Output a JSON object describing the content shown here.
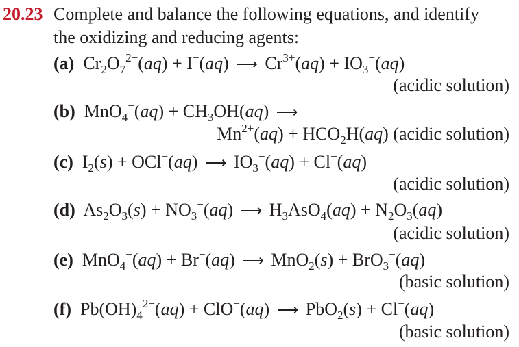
{
  "problem": {
    "number": "20.23",
    "intro_line1": "Complete and balance the following equations, and identify",
    "intro_line2": "the oxidizing and reducing agents:",
    "accent_color": "#c41e2e",
    "parts": [
      {
        "label": "(a)",
        "lines": [
          [
            {
              "t": "Cr"
            },
            {
              "sub": "2"
            },
            {
              "t": "O"
            },
            {
              "sub": "7"
            },
            {
              "sup": "2−"
            },
            {
              "t": "("
            },
            {
              "i": "aq"
            },
            {
              "t": ") + I"
            },
            {
              "sup": "−"
            },
            {
              "t": "("
            },
            {
              "i": "aq"
            },
            {
              "t": ") "
            },
            {
              "arrow": "⟶"
            },
            {
              "t": " Cr"
            },
            {
              "sup": "3+"
            },
            {
              "t": "("
            },
            {
              "i": "aq"
            },
            {
              "t": ") + IO"
            },
            {
              "sub": "3"
            },
            {
              "sup": "−"
            },
            {
              "t": "("
            },
            {
              "i": "aq"
            },
            {
              "t": ")"
            }
          ],
          [
            {
              "t": "(acidic solution)"
            }
          ]
        ]
      },
      {
        "label": "(b)",
        "lines": [
          [
            {
              "t": "MnO"
            },
            {
              "sub": "4"
            },
            {
              "sup": "−"
            },
            {
              "t": "("
            },
            {
              "i": "aq"
            },
            {
              "t": ") + CH"
            },
            {
              "sub": "3"
            },
            {
              "t": "OH("
            },
            {
              "i": "aq"
            },
            {
              "t": ") "
            },
            {
              "arrow": "⟶"
            }
          ],
          [
            {
              "t": "Mn"
            },
            {
              "sup": "2+"
            },
            {
              "t": "("
            },
            {
              "i": "aq"
            },
            {
              "t": ") + HCO"
            },
            {
              "sub": "2"
            },
            {
              "t": "H("
            },
            {
              "i": "aq"
            },
            {
              "t": ") (acidic solution)"
            }
          ]
        ]
      },
      {
        "label": "(c)",
        "lines": [
          [
            {
              "t": "I"
            },
            {
              "sub": "2"
            },
            {
              "t": "("
            },
            {
              "i": "s"
            },
            {
              "t": ") + OCl"
            },
            {
              "sup": "−"
            },
            {
              "t": "("
            },
            {
              "i": "aq"
            },
            {
              "t": ") "
            },
            {
              "arrow": "⟶"
            },
            {
              "t": " IO"
            },
            {
              "sub": "3"
            },
            {
              "sup": "−"
            },
            {
              "t": "("
            },
            {
              "i": "aq"
            },
            {
              "t": ") + Cl"
            },
            {
              "sup": "−"
            },
            {
              "t": "("
            },
            {
              "i": "aq"
            },
            {
              "t": ")"
            }
          ],
          [
            {
              "t": "(acidic solution)"
            }
          ]
        ]
      },
      {
        "label": "(d)",
        "lines": [
          [
            {
              "t": "As"
            },
            {
              "sub": "2"
            },
            {
              "t": "O"
            },
            {
              "sub": "3"
            },
            {
              "t": "("
            },
            {
              "i": "s"
            },
            {
              "t": ") + NO"
            },
            {
              "sub": "3"
            },
            {
              "sup": "−"
            },
            {
              "t": "("
            },
            {
              "i": "aq"
            },
            {
              "t": ") "
            },
            {
              "arrow": "⟶"
            },
            {
              "t": " H"
            },
            {
              "sub": "3"
            },
            {
              "t": "AsO"
            },
            {
              "sub": "4"
            },
            {
              "t": "("
            },
            {
              "i": "aq"
            },
            {
              "t": ") + N"
            },
            {
              "sub": "2"
            },
            {
              "t": "O"
            },
            {
              "sub": "3"
            },
            {
              "t": "("
            },
            {
              "i": "aq"
            },
            {
              "t": ")"
            }
          ],
          [
            {
              "t": "(acidic solution)"
            }
          ]
        ]
      },
      {
        "label": "(e)",
        "lines": [
          [
            {
              "t": "MnO"
            },
            {
              "sub": "4"
            },
            {
              "sup": "−"
            },
            {
              "t": "("
            },
            {
              "i": "aq"
            },
            {
              "t": ") + Br"
            },
            {
              "sup": "−"
            },
            {
              "t": "("
            },
            {
              "i": "aq"
            },
            {
              "t": ") "
            },
            {
              "arrow": "⟶"
            },
            {
              "t": " MnO"
            },
            {
              "sub": "2"
            },
            {
              "t": "("
            },
            {
              "i": "s"
            },
            {
              "t": ") + BrO"
            },
            {
              "sub": "3"
            },
            {
              "sup": "−"
            },
            {
              "t": "("
            },
            {
              "i": "aq"
            },
            {
              "t": ")"
            }
          ],
          [
            {
              "t": "(basic solution)"
            }
          ]
        ]
      },
      {
        "label": "(f)",
        "lines": [
          [
            {
              "t": "Pb(OH)"
            },
            {
              "sub": "4"
            },
            {
              "sup": "2−"
            },
            {
              "t": "("
            },
            {
              "i": "aq"
            },
            {
              "t": ") + ClO"
            },
            {
              "sup": "−"
            },
            {
              "t": "("
            },
            {
              "i": "aq"
            },
            {
              "t": ") "
            },
            {
              "arrow": "⟶"
            },
            {
              "t": " PbO"
            },
            {
              "sub": "2"
            },
            {
              "t": "("
            },
            {
              "i": "s"
            },
            {
              "t": ") + Cl"
            },
            {
              "sup": "−"
            },
            {
              "t": "("
            },
            {
              "i": "aq"
            },
            {
              "t": ")"
            }
          ],
          [
            {
              "t": "(basic solution)"
            }
          ]
        ]
      }
    ]
  }
}
